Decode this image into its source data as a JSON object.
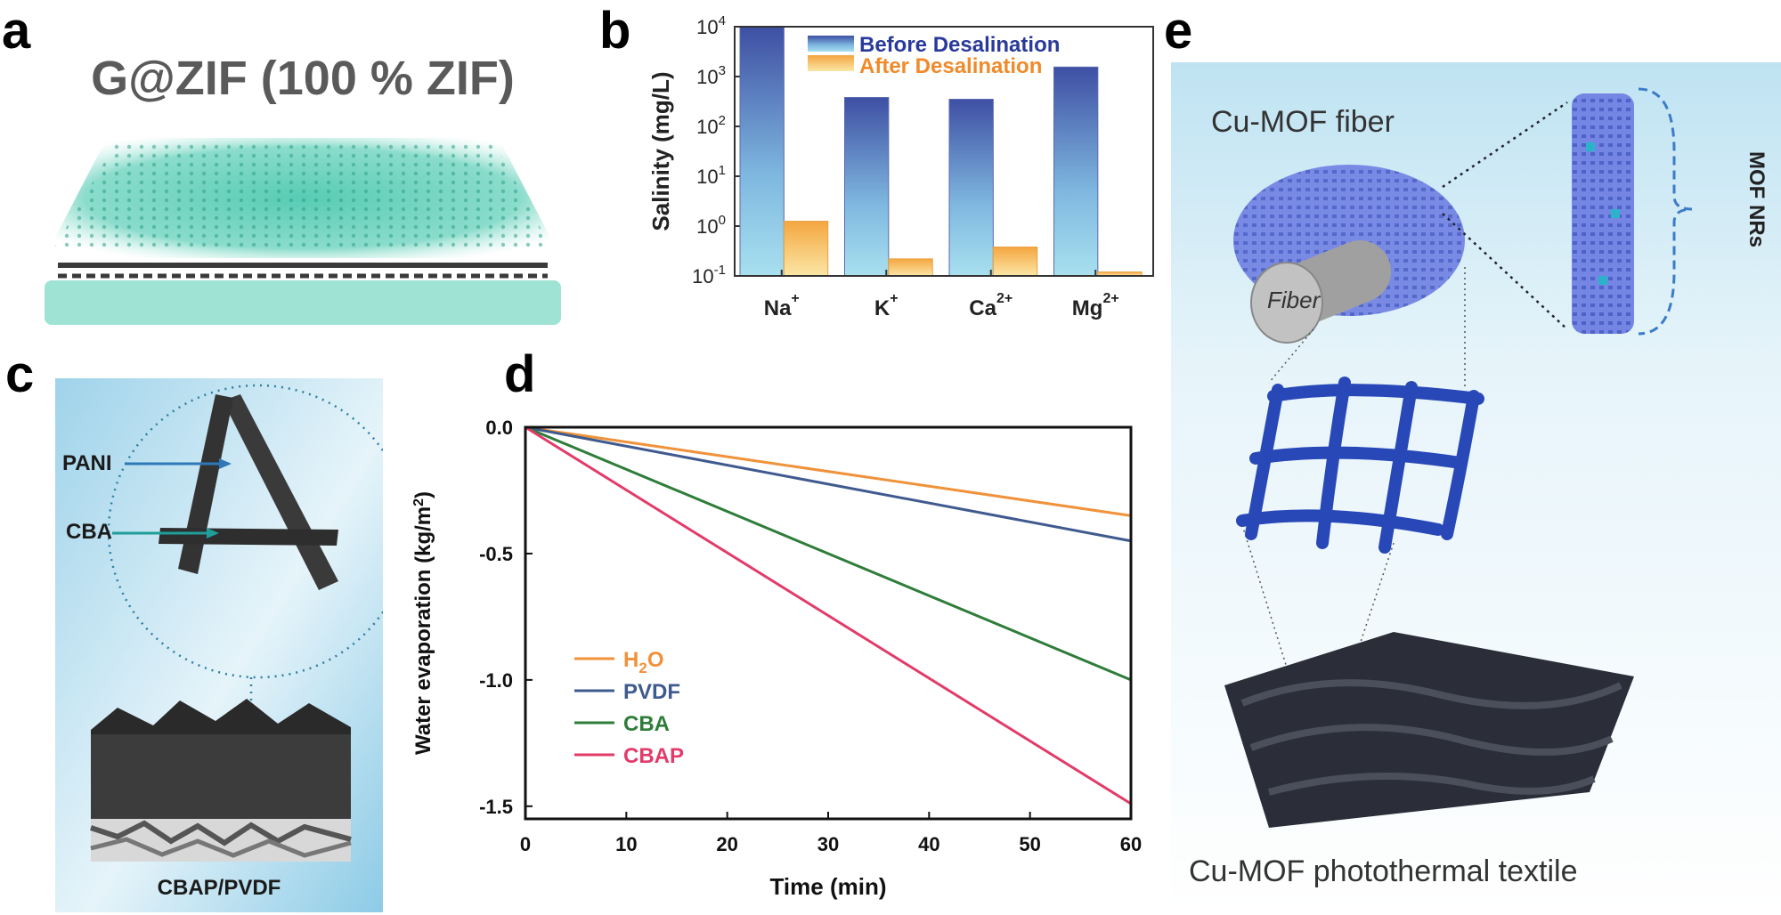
{
  "panels": {
    "a": {
      "letter": "a",
      "title": "G@ZIF (100 % ZIF)"
    },
    "b": {
      "letter": "b"
    },
    "c": {
      "letter": "c",
      "label_pani": "PANI",
      "label_cba": "CBA",
      "caption": "CBAP/PVDF"
    },
    "d": {
      "letter": "d"
    },
    "e": {
      "letter": "e",
      "fiber_title": "Cu-MOF fiber",
      "fiber_label": "Fiber",
      "nrs_label": "MOF NRs",
      "caption": "Cu-MOF photothermal textile"
    }
  },
  "colors": {
    "zif_teal": "#4fc9b0",
    "bar_before_top": "#3e4fa3",
    "bar_before_bottom": "#a8e0ef",
    "bar_after_top": "#f4a640",
    "bar_after_bottom": "#fbe7a6",
    "legend_before": "#2a3a9a",
    "legend_after": "#f08a2a",
    "h2o": "#f0923a",
    "pvdf": "#3f5a8f",
    "cba": "#2f7d3a",
    "cbap": "#e23b6a",
    "mof_blue": "#6d7fe0"
  },
  "chart_data": [
    {
      "id": "b",
      "type": "bar",
      "scale": "log",
      "categories": [
        "Na",
        "K",
        "Ca",
        "Mg"
      ],
      "category_superscripts": [
        "+",
        "+",
        "2+",
        "2+"
      ],
      "series": [
        {
          "name": "Before Desalination",
          "values": [
            10000,
            380,
            350,
            1550
          ]
        },
        {
          "name": "After Desalination",
          "values": [
            1.25,
            0.22,
            0.38,
            0.12
          ]
        }
      ],
      "ylabel": "Salinity (mg/L)",
      "ylim": [
        0.1,
        10000
      ],
      "yticks": [
        {
          "base": "10",
          "exp": "-1"
        },
        {
          "base": "10",
          "exp": "0"
        },
        {
          "base": "10",
          "exp": "1"
        },
        {
          "base": "10",
          "exp": "2"
        },
        {
          "base": "10",
          "exp": "3"
        },
        {
          "base": "10",
          "exp": "4"
        }
      ],
      "legend": "top-right"
    },
    {
      "id": "d",
      "type": "line",
      "x": [
        0,
        60
      ],
      "series": [
        {
          "name": "H2O",
          "label_main": "H",
          "label_sub": "2",
          "label_tail": "O",
          "values": [
            0,
            -0.35
          ]
        },
        {
          "name": "PVDF",
          "label_main": "PVDF",
          "values": [
            0,
            -0.45
          ]
        },
        {
          "name": "CBA",
          "label_main": "CBA",
          "values": [
            0,
            -1.0
          ]
        },
        {
          "name": "CBAP",
          "label_main": "CBAP",
          "values": [
            0,
            -1.49
          ]
        }
      ],
      "xlabel": "Time (min)",
      "ylabel_main": "Water evaporation (kg/m",
      "ylabel_sup": "2",
      "ylabel_tail": ")",
      "xlim": [
        0,
        60
      ],
      "ylim": [
        -1.55,
        0
      ],
      "xticks": [
        "0",
        "10",
        "20",
        "30",
        "40",
        "50",
        "60"
      ],
      "yticks": [
        "0.0",
        "-0.5",
        "-1.0",
        "-1.5"
      ],
      "ytick_values": [
        0,
        -0.5,
        -1.0,
        -1.5
      ],
      "legend": "bottom-left"
    }
  ]
}
